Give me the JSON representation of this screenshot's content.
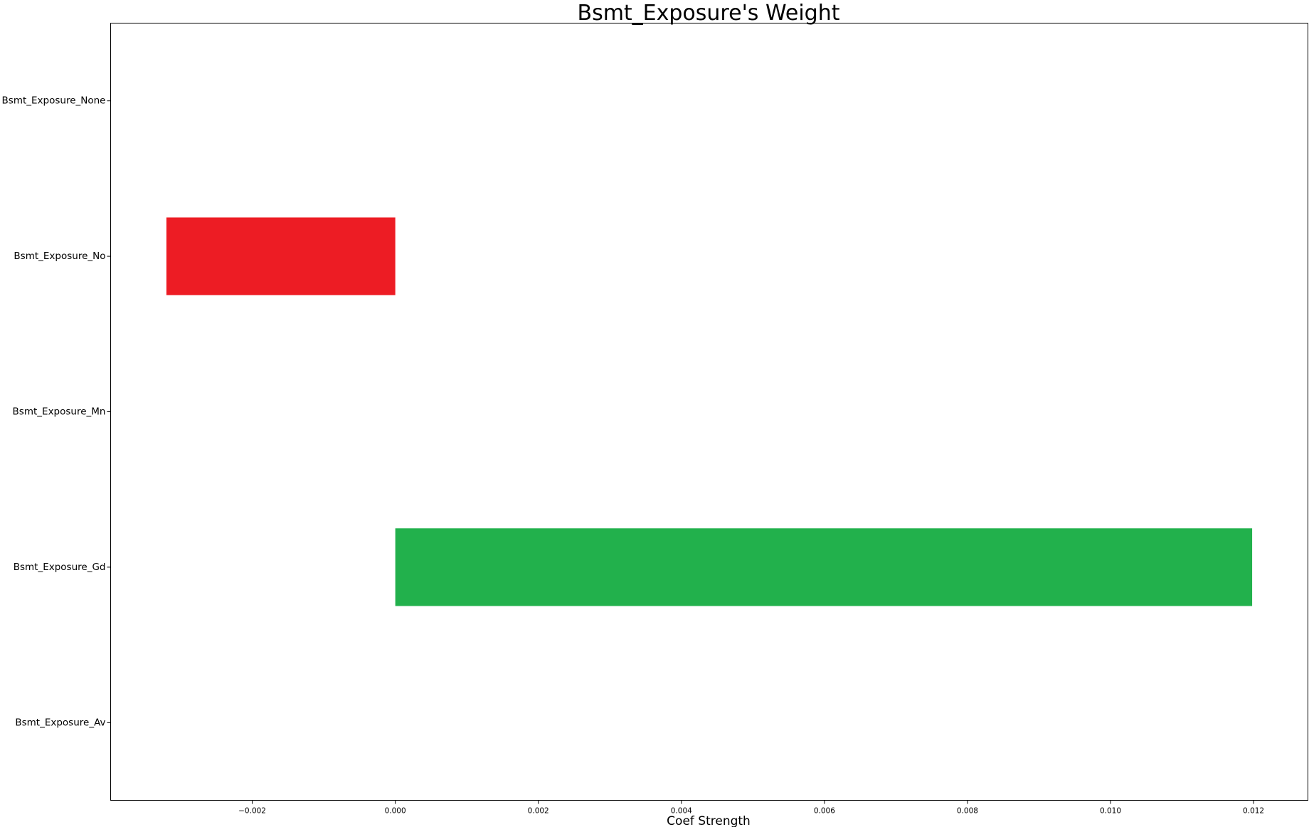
{
  "chart_data": {
    "type": "bar",
    "orientation": "horizontal",
    "title": "Bsmt_Exposure's Weight",
    "xlabel": "Coef Strength",
    "ylabel": "",
    "categories": [
      "Bsmt_Exposure_None",
      "Bsmt_Exposure_No",
      "Bsmt_Exposure_Mn",
      "Bsmt_Exposure_Gd",
      "Bsmt_Exposure_Av"
    ],
    "values": [
      0.0,
      -0.0032,
      0.0,
      0.01198,
      0.0
    ],
    "bar_colors": [
      "#ED1C24",
      "#ED1C24",
      "#ED1C24",
      "#22B14C",
      "#22B14C"
    ],
    "xlim": [
      -0.00398,
      0.01276
    ],
    "xticks": [
      -0.002,
      0.0,
      0.002,
      0.004,
      0.006,
      0.008,
      0.01,
      0.012
    ],
    "xtick_labels": [
      "−0.002",
      "0.000",
      "0.002",
      "0.004",
      "0.006",
      "0.008",
      "0.010",
      "0.012"
    ],
    "grid": false,
    "legend": "none"
  }
}
